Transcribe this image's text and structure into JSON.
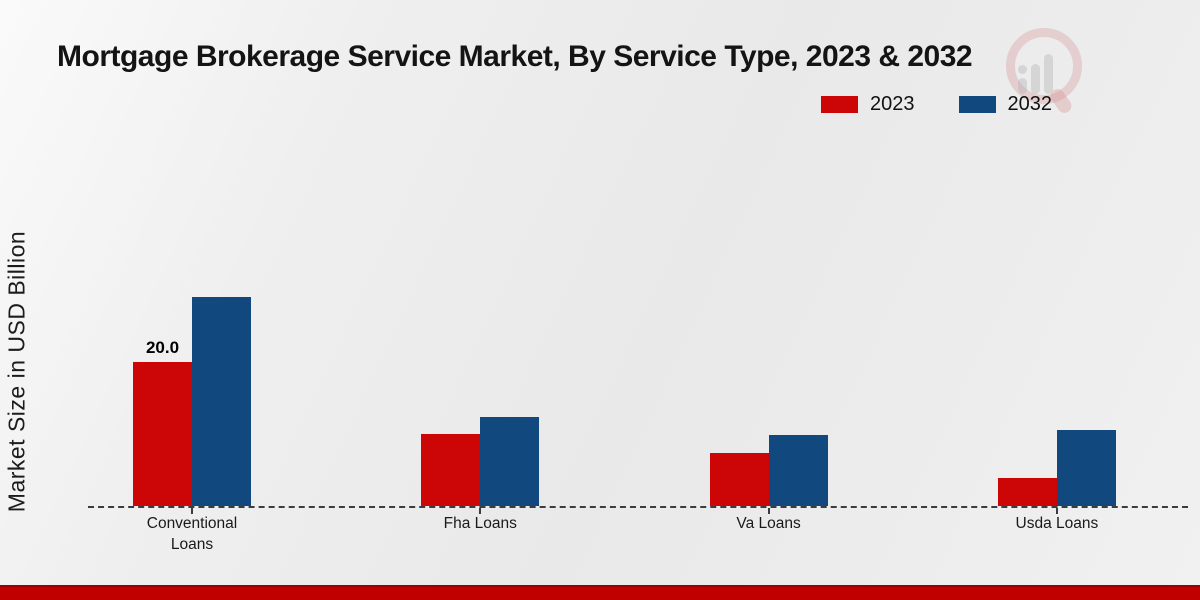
{
  "title": "Mortgage Brokerage Service Market, By Service Type, 2023 & 2032",
  "ylabel": "Market Size in USD Billion",
  "legend": {
    "position": "top-right",
    "items": [
      {
        "label": "2023",
        "color": "#cc0606"
      },
      {
        "label": "2032",
        "color": "#11497e"
      }
    ]
  },
  "watermark": "magnifier-bar-chart-logo",
  "footer": {
    "band_color": "#c00000"
  },
  "chart_data": {
    "type": "bar",
    "title": "Mortgage Brokerage Service Market, By Service Type, 2023 & 2032",
    "xlabel": "",
    "ylabel": "Market Size in USD Billion",
    "categories": [
      "Conventional Loans",
      "Fha Loans",
      "Va Loans",
      "Usda Loans"
    ],
    "series": [
      {
        "name": "2023",
        "color": "#cc0606",
        "values": [
          20.0,
          10.0,
          7.4,
          3.9
        ]
      },
      {
        "name": "2032",
        "color": "#11497e",
        "values": [
          29.0,
          12.4,
          9.9,
          10.6
        ]
      }
    ],
    "value_labels": [
      {
        "series_index": 0,
        "category_index": 0,
        "text": "20.0"
      }
    ],
    "ylim": [
      0,
      33
    ],
    "grid": false,
    "baseline_style": "dashed",
    "legend_position": "top-right"
  }
}
